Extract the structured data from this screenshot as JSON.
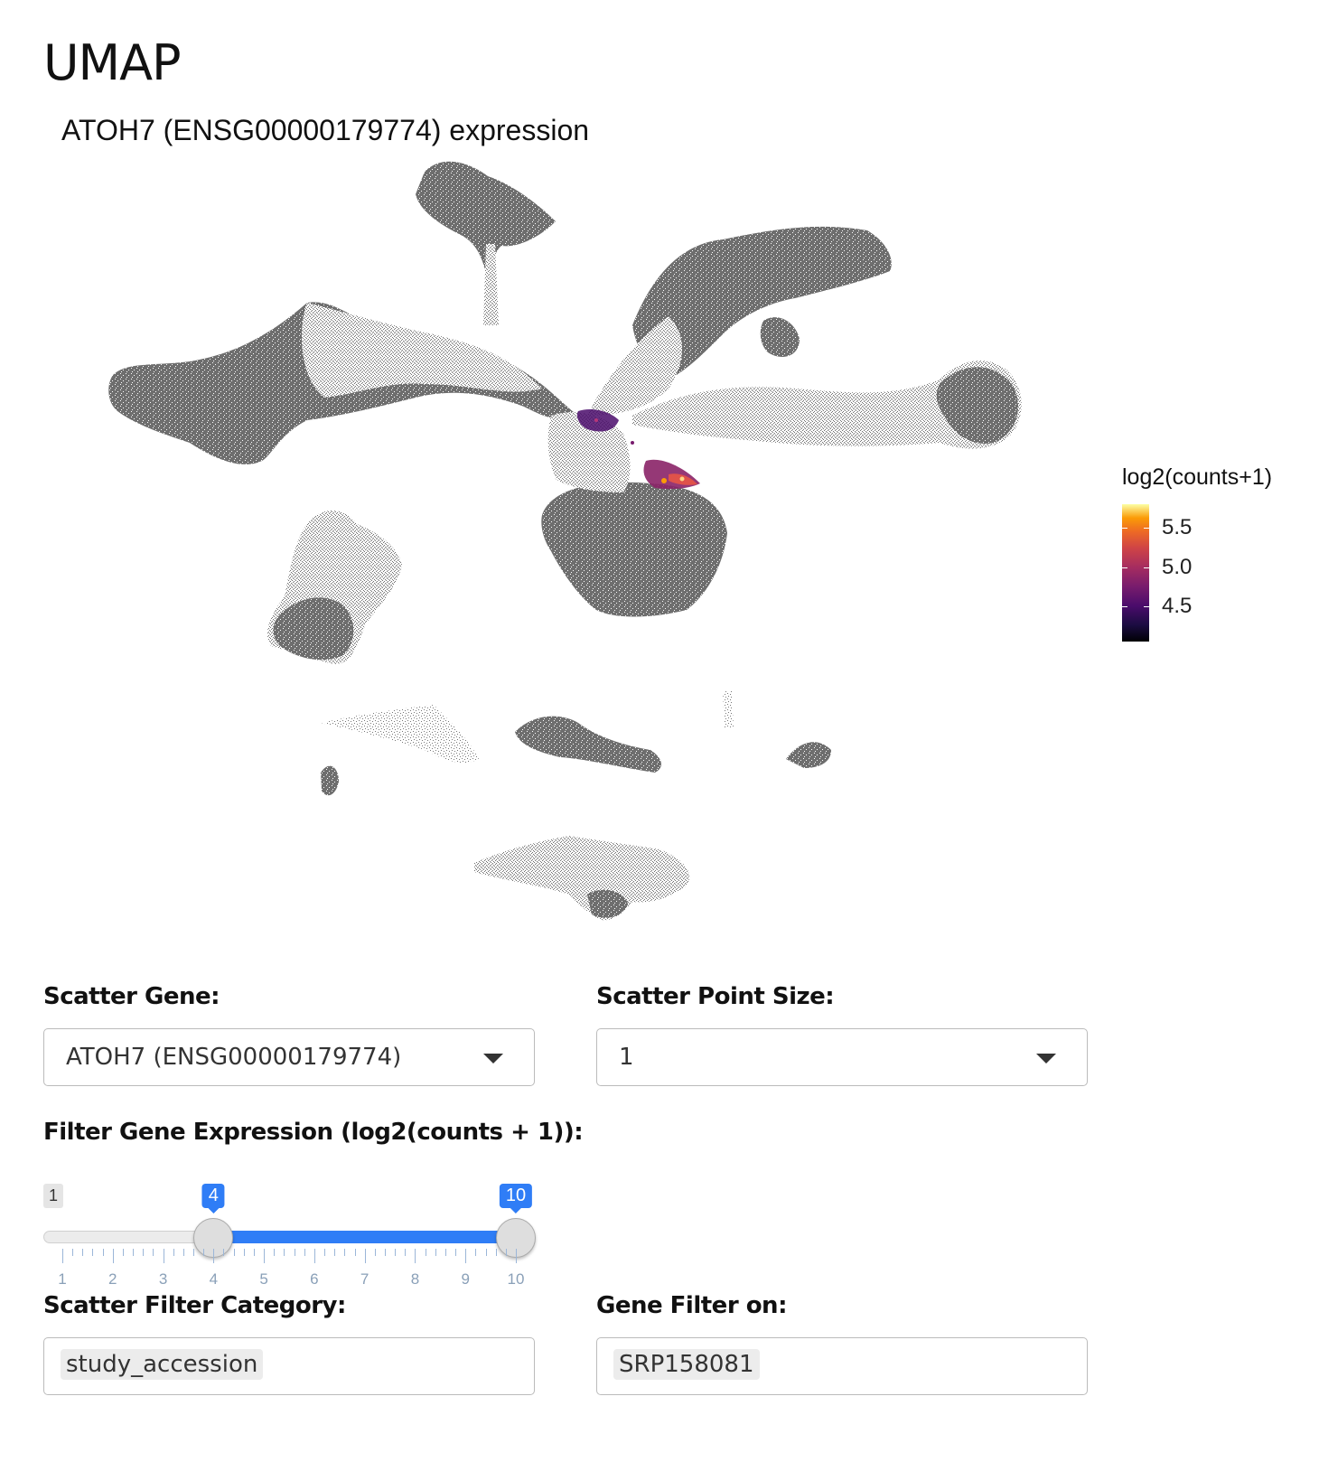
{
  "page": {
    "title": "UMAP"
  },
  "plot": {
    "title": "ATOH7 (ENSG00000179774) expression",
    "point_color": "#666666",
    "legend": {
      "title": "log2(counts+1)",
      "labels": [
        "5.5",
        "5.0",
        "4.5"
      ],
      "colormap": "magma"
    }
  },
  "controls": {
    "scatter_gene": {
      "label": "Scatter Gene:",
      "value": "ATOH7 (ENSG00000179774)"
    },
    "scatter_point_size": {
      "label": "Scatter Point Size:",
      "value": "1"
    },
    "filter_expression": {
      "label": "Filter Gene Expression (log2(counts + 1)):",
      "min": 1,
      "max": 10,
      "low": 4,
      "high": 10,
      "min_label": "1",
      "low_label": "4",
      "high_label": "10",
      "tick_labels": [
        "1",
        "2",
        "3",
        "4",
        "5",
        "6",
        "7",
        "8",
        "9",
        "10"
      ],
      "accent": "#2f7df6"
    },
    "scatter_filter_category": {
      "label": "Scatter Filter Category:",
      "value": "study_accession"
    },
    "gene_filter_on": {
      "label": "Gene Filter on:",
      "value": "SRP158081"
    }
  }
}
